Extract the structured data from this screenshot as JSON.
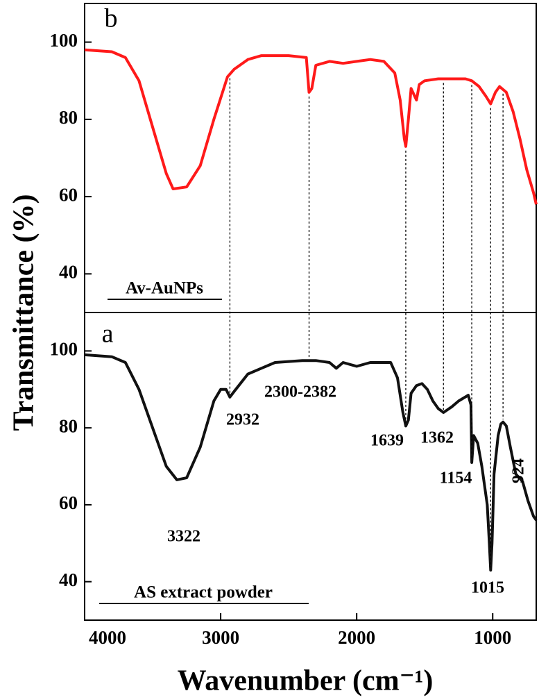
{
  "chart_data": [
    {
      "type": "line",
      "panel_label": "b",
      "ylabel": "Transmittance (%)",
      "x": [
        4000,
        3800,
        3700,
        3600,
        3500,
        3400,
        3350,
        3250,
        3150,
        3050,
        2950,
        2900,
        2800,
        2700,
        2500,
        2370,
        2350,
        2330,
        2300,
        2200,
        2100,
        2000,
        1900,
        1800,
        1720,
        1680,
        1650,
        1639,
        1620,
        1600,
        1560,
        1540,
        1500,
        1400,
        1300,
        1200,
        1154,
        1100,
        1050,
        1015,
        980,
        950,
        900,
        850,
        800,
        750,
        700,
        680
      ],
      "series": [
        {
          "name": "Av-AuNPs",
          "color": "#ff1a1a",
          "values": [
            98,
            97.5,
            96,
            90,
            78,
            66,
            62,
            62.5,
            68,
            80,
            91,
            93,
            95.5,
            96.5,
            96.5,
            96,
            87,
            88,
            94,
            95,
            94.5,
            95,
            95.5,
            95,
            92,
            85,
            75,
            73,
            80,
            88,
            85,
            89,
            90,
            90.5,
            90.5,
            90.5,
            90,
            88.5,
            86,
            84,
            87,
            88.5,
            87,
            82,
            75,
            67,
            61,
            58
          ]
        }
      ],
      "xlim": [
        4000,
        680
      ],
      "ylim": [
        30,
        110
      ],
      "yticks": [
        40,
        60,
        80,
        100
      ]
    },
    {
      "type": "line",
      "panel_label": "a",
      "xlabel": "Wavenumber (cm⁻¹)",
      "x": [
        4000,
        3800,
        3700,
        3600,
        3500,
        3400,
        3322,
        3250,
        3150,
        3050,
        3000,
        2960,
        2932,
        2900,
        2800,
        2600,
        2400,
        2300,
        2200,
        2150,
        2100,
        2000,
        1900,
        1750,
        1700,
        1660,
        1639,
        1620,
        1600,
        1560,
        1520,
        1480,
        1440,
        1400,
        1362,
        1300,
        1250,
        1180,
        1160,
        1154,
        1140,
        1110,
        1080,
        1060,
        1040,
        1025,
        1015,
        1005,
        990,
        960,
        940,
        924,
        900,
        870,
        830,
        780,
        740,
        700,
        680
      ],
      "series": [
        {
          "name": "AS extract powder",
          "color": "#111111",
          "values": [
            99,
            98.5,
            97,
            90,
            80,
            70,
            66.5,
            67,
            75,
            87,
            90,
            90,
            88,
            89.5,
            94,
            97,
            97.5,
            97.5,
            97,
            95.5,
            97,
            96,
            97,
            97,
            93,
            84,
            80.5,
            82,
            89,
            91,
            91.5,
            90,
            87,
            85,
            84,
            85.5,
            87,
            88.5,
            86,
            71,
            78,
            76,
            70,
            65,
            60,
            50,
            43,
            50,
            68,
            78,
            81,
            81.5,
            80.5,
            75,
            68,
            66,
            61,
            57,
            56
          ]
        }
      ],
      "xlim": [
        4000,
        680
      ],
      "ylim": [
        30,
        110
      ],
      "yticks": [
        40,
        60,
        80,
        100
      ],
      "xticks": [
        4000,
        3000,
        2000,
        1000
      ],
      "annotations": [
        "3322",
        "2932",
        "2300-2382",
        "1639",
        "1362",
        "1154",
        "1015",
        "924"
      ],
      "peak_lines": [
        2932,
        2350,
        1639,
        1362,
        1154,
        1015,
        924
      ]
    }
  ]
}
